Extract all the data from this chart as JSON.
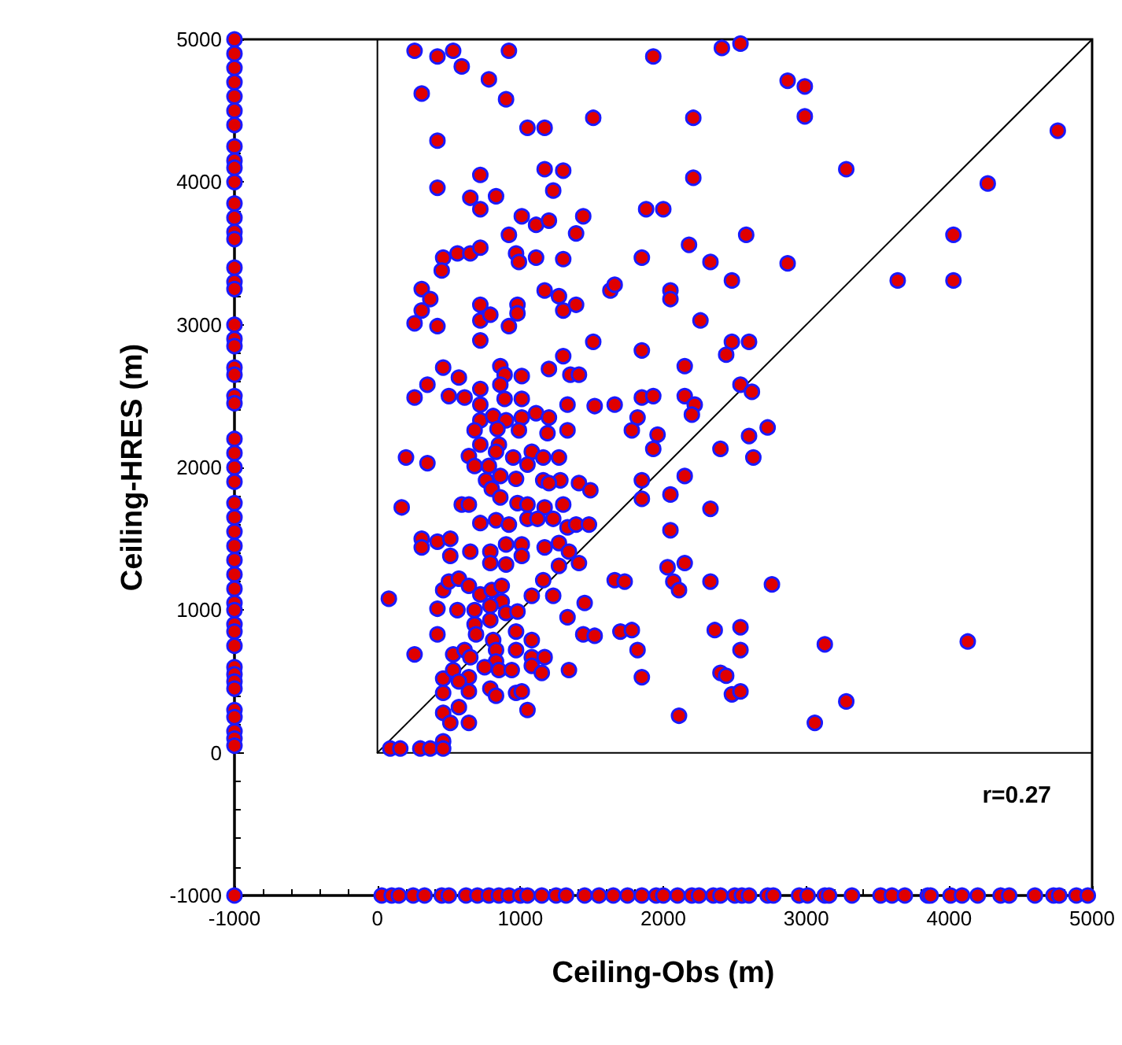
{
  "chart_data": {
    "type": "scatter",
    "xlabel": "Ceiling-Obs (m)",
    "ylabel": "Ceiling-HRES (m)",
    "xlim": [
      -1000,
      5000
    ],
    "ylim": [
      -1000,
      5000
    ],
    "xticks": [
      -1000,
      0,
      1000,
      2000,
      3000,
      4000,
      5000
    ],
    "yticks": [
      -1000,
      0,
      1000,
      2000,
      3000,
      4000,
      5000
    ],
    "grid": false,
    "marker": "circle",
    "annotations": [
      "r=0.27"
    ],
    "series": [
      {
        "type": "line",
        "color": "#000000",
        "marker": "none",
        "line_style": "solid",
        "x": [
          0,
          5000
        ],
        "values": [
          0,
          5000
        ]
      },
      {
        "type": "line",
        "color": "#000000",
        "marker": "none",
        "line_style": "solid",
        "x": [
          0,
          0,
          5000
        ],
        "values": [
          5000,
          0,
          0
        ]
      },
      {
        "type": "scatter",
        "color": "#e00000",
        "x": [
          260,
          420,
          530,
          920,
          590,
          780,
          310,
          900,
          1930,
          2410,
          2540,
          2870,
          2990,
          2990,
          1510,
          2210,
          1050,
          1170,
          420,
          4760,
          3280,
          4270,
          1170,
          1300,
          720,
          2210,
          420,
          650,
          830,
          1230,
          720,
          1880,
          2000,
          1010,
          1110,
          1200,
          1440,
          920,
          1390,
          2580,
          4030,
          2180,
          460,
          560,
          650,
          720,
          970,
          990,
          1110,
          1300,
          1850,
          2330,
          2870,
          450,
          2480,
          3640,
          4030,
          310,
          370,
          310,
          260,
          420,
          720,
          720,
          790,
          980,
          980,
          920,
          1170,
          1270,
          1300,
          1390,
          1630,
          1660,
          2050,
          2050,
          2260,
          720,
          1510,
          1850,
          2480,
          2600,
          2440,
          460,
          570,
          860,
          890,
          1010,
          1200,
          1300,
          1350,
          1410,
          2150,
          350,
          720,
          860,
          2540,
          2620,
          260,
          500,
          610,
          720,
          890,
          1010,
          1330,
          1520,
          1660,
          1850,
          1930,
          2150,
          2220,
          2200,
          1820,
          1780,
          1960,
          1930,
          2600,
          2730,
          2400,
          2630,
          720,
          810,
          900,
          1010,
          1110,
          1200,
          680,
          840,
          990,
          1190,
          1330,
          720,
          850,
          200,
          350,
          640,
          830,
          950,
          1080,
          1160,
          1270,
          680,
          780,
          1050,
          760,
          860,
          970,
          1160,
          1280,
          1200,
          1410,
          1490,
          800,
          860,
          1850,
          2150,
          1850,
          2050,
          2330,
          170,
          590,
          640,
          980,
          1050,
          1170,
          1300,
          720,
          830,
          920,
          1050,
          1120,
          1230,
          1330,
          1390,
          1480,
          2050,
          310,
          420,
          510,
          310,
          650,
          510,
          790,
          900,
          1010,
          1010,
          1170,
          1270,
          1340,
          790,
          900,
          1270,
          1410,
          2030,
          2150,
          2070,
          2110,
          2330,
          2760,
          1660,
          1730,
          80,
          460,
          500,
          570,
          640,
          720,
          800,
          870,
          870,
          1160,
          1080,
          1230,
          1450,
          420,
          560,
          680,
          790,
          900,
          980,
          680,
          790,
          1330,
          420,
          690,
          810,
          970,
          1080,
          1440,
          1520,
          1700,
          1780,
          2360,
          2540,
          1820,
          2540,
          3130,
          4130,
          260,
          530,
          610,
          650,
          830,
          970,
          1080,
          1170,
          830,
          460,
          530,
          640,
          750,
          850,
          940,
          1080,
          1150,
          1340,
          790,
          570,
          640,
          830,
          970,
          1010,
          1850,
          2400,
          2440,
          2480,
          2540,
          3280,
          460,
          570,
          460,
          510,
          640,
          1050,
          2110,
          3060,
          90,
          160,
          300,
          370,
          460,
          460,
          -1000,
          -1000,
          -1000,
          -1000,
          -1000,
          -1000,
          -1000,
          -1000,
          -1000,
          -1000,
          -1000,
          -1000,
          -1000,
          -1000,
          -1000,
          -1000,
          -1000,
          -1000,
          -1000,
          -1000,
          -1000,
          -1000,
          -1000,
          -1000,
          -1000,
          -1000,
          -1000,
          -1000,
          -1000,
          -1000,
          -1000,
          -1000,
          -1000,
          -1000,
          -1000,
          -1000,
          -1000,
          -1000,
          -1000,
          -1000,
          -1000,
          -1000,
          -1000,
          -1000,
          -1000,
          -1000,
          -1000,
          -1000,
          -1000,
          -1000,
          -1000,
          30,
          100,
          150,
          250,
          330,
          450,
          500,
          620,
          700,
          780,
          850,
          920,
          1000,
          1050,
          1150,
          1250,
          1320,
          1450,
          1550,
          1650,
          1750,
          1850,
          1950,
          2000,
          2100,
          2200,
          2250,
          2350,
          2400,
          2500,
          2550,
          2600,
          2730,
          2770,
          2950,
          3010,
          3130,
          3160,
          3320,
          3520,
          3600,
          3690,
          3850,
          3870,
          4010,
          4090,
          4200,
          4360,
          4420,
          4600,
          4730,
          4770,
          4890,
          4970
        ],
        "values": [
          4920,
          4880,
          4920,
          4920,
          4810,
          4720,
          4620,
          4580,
          4880,
          4940,
          4970,
          4710,
          4670,
          4460,
          4450,
          4450,
          4380,
          4380,
          4290,
          4360,
          4090,
          3990,
          4090,
          4080,
          4050,
          4030,
          3960,
          3890,
          3900,
          3940,
          3810,
          3810,
          3810,
          3760,
          3700,
          3730,
          3760,
          3630,
          3640,
          3630,
          3630,
          3560,
          3470,
          3500,
          3500,
          3540,
          3500,
          3440,
          3470,
          3460,
          3470,
          3440,
          3430,
          3380,
          3310,
          3310,
          3310,
          3250,
          3180,
          3100,
          3010,
          2990,
          3140,
          3030,
          3070,
          3140,
          3080,
          2990,
          3240,
          3200,
          3100,
          3140,
          3240,
          3280,
          3240,
          3180,
          3030,
          2890,
          2880,
          2820,
          2880,
          2880,
          2790,
          2700,
          2630,
          2710,
          2650,
          2640,
          2690,
          2780,
          2650,
          2650,
          2710,
          2580,
          2550,
          2580,
          2580,
          2530,
          2490,
          2500,
          2490,
          2440,
          2480,
          2480,
          2440,
          2430,
          2440,
          2490,
          2500,
          2500,
          2440,
          2370,
          2350,
          2260,
          2230,
          2130,
          2220,
          2280,
          2130,
          2070,
          2330,
          2360,
          2330,
          2350,
          2380,
          2350,
          2260,
          2270,
          2260,
          2240,
          2260,
          2160,
          2160,
          2070,
          2030,
          2080,
          2110,
          2070,
          2110,
          2070,
          2070,
          2010,
          2010,
          2020,
          1910,
          1940,
          1920,
          1910,
          1910,
          1890,
          1890,
          1840,
          1850,
          1790,
          1910,
          1940,
          1780,
          1810,
          1710,
          1720,
          1740,
          1740,
          1750,
          1740,
          1720,
          1740,
          1610,
          1630,
          1600,
          1640,
          1640,
          1640,
          1580,
          1600,
          1600,
          1560,
          1500,
          1480,
          1500,
          1440,
          1410,
          1380,
          1410,
          1460,
          1460,
          1380,
          1440,
          1470,
          1410,
          1330,
          1320,
          1310,
          1330,
          1300,
          1330,
          1200,
          1140,
          1200,
          1180,
          1210,
          1200,
          1080,
          1140,
          1200,
          1220,
          1170,
          1110,
          1140,
          1170,
          1060,
          1210,
          1100,
          1100,
          1050,
          1010,
          1000,
          1000,
          1030,
          980,
          990,
          900,
          930,
          950,
          830,
          830,
          790,
          850,
          790,
          830,
          820,
          850,
          860,
          860,
          880,
          720,
          720,
          760,
          780,
          690,
          690,
          720,
          670,
          720,
          720,
          670,
          670,
          640,
          520,
          580,
          530,
          600,
          580,
          580,
          610,
          560,
          580,
          450,
          500,
          430,
          400,
          420,
          430,
          530,
          560,
          540,
          410,
          430,
          360,
          420,
          320,
          280,
          210,
          210,
          300,
          260,
          210,
          30,
          30,
          30,
          30,
          80,
          30,
          5000,
          4900,
          4800,
          4700,
          4600,
          4500,
          4400,
          4250,
          4150,
          4100,
          4000,
          3850,
          3750,
          3650,
          3600,
          3400,
          3300,
          3250,
          3000,
          2900,
          2850,
          2700,
          2650,
          2500,
          2450,
          2200,
          2100,
          2000,
          1900,
          1750,
          1650,
          1550,
          1450,
          1350,
          1250,
          1150,
          1050,
          1000,
          900,
          850,
          750,
          600,
          550,
          500,
          450,
          300,
          250,
          150,
          100,
          50,
          -1000,
          -1000,
          -1000,
          -1000,
          -1000,
          -1000,
          -1000,
          -1000,
          -1000,
          -1000,
          -1000,
          -1000,
          -1000,
          -1000,
          -1000,
          -1000,
          -1000,
          -1000,
          -1000,
          -1000,
          -1000,
          -1000,
          -1000,
          -1000,
          -1000,
          -1000,
          -1000,
          -1000,
          -1000,
          -1000,
          -1000,
          -1000,
          -1000,
          -1000,
          -1000,
          -1000,
          -1000,
          -1000,
          -1000,
          -1000,
          -1000,
          -1000,
          -1000,
          -1000,
          -1000,
          -1000,
          -1000,
          -1000,
          -1000,
          -1000,
          -1000,
          -1000,
          -1000,
          -1000,
          -1000
        ]
      }
    ]
  }
}
